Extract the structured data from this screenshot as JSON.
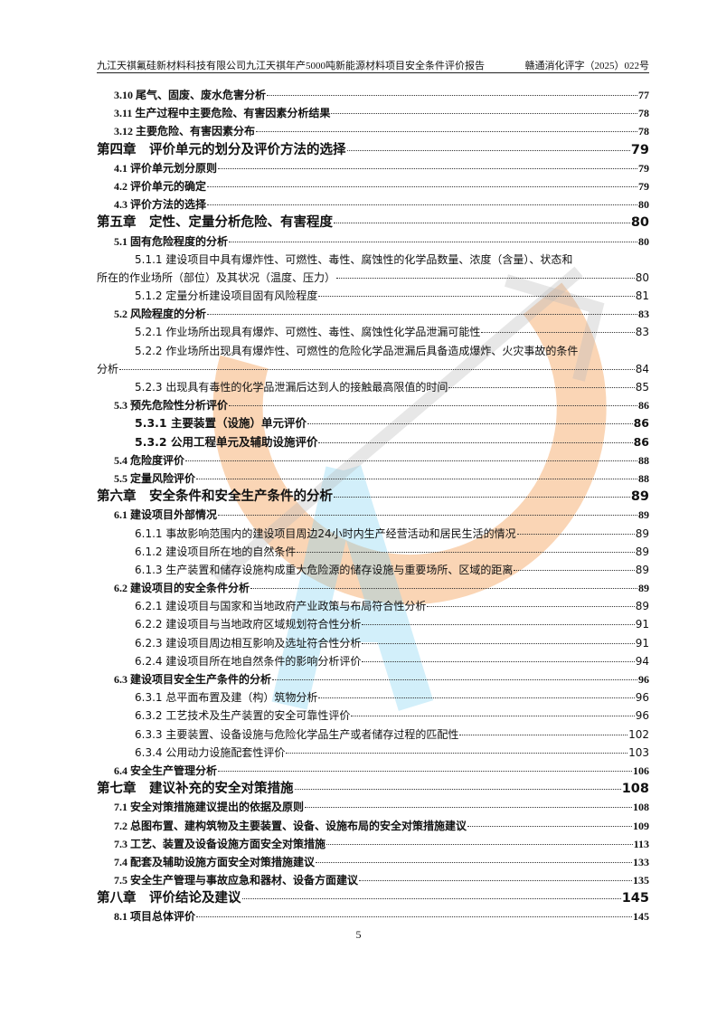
{
  "header": {
    "left": "九江天祺氟硅新材料科技有限公司九江天祺年产5000吨新能源材料项目安全条件评价报告",
    "right": "赣通消化评字（2025）022号"
  },
  "toc": [
    {
      "level": "l2",
      "title": "3.10 尾气、固废、废水危害分析",
      "page": "77"
    },
    {
      "level": "l2",
      "title": "3.11 生产过程中主要危险、有害因素分析结果",
      "page": "78"
    },
    {
      "level": "l2",
      "title": "3.12 主要危险、有害因素分布",
      "page": "78"
    },
    {
      "level": "l1",
      "title": "第四章　评价单元的划分及评价方法的选择",
      "page": "79"
    },
    {
      "level": "l2",
      "title": "4.1 评价单元划分原则",
      "page": "79"
    },
    {
      "level": "l2",
      "title": "4.2 评价单元的确定",
      "page": "79"
    },
    {
      "level": "l2",
      "title": "4.3 评价方法的选择",
      "page": "80"
    },
    {
      "level": "l1",
      "title": "第五章　定性、定量分析危险、有害程度",
      "page": "80"
    },
    {
      "level": "l2",
      "title": "5.1 固有危险程度的分析",
      "page": "80"
    },
    {
      "level": "l3",
      "title": "5.1.1 建设项目中具有爆炸性、可燃性、毒性、腐蚀性的化学品数量、浓度（含量）、状态和",
      "cont": "所在的作业场所（部位）及其状况（温度、压力）",
      "page": "80"
    },
    {
      "level": "l3",
      "title": "5.1.2 定量分析建设项目固有风险程度",
      "page": "81"
    },
    {
      "level": "l2",
      "title": "5.2  风险程度的分析",
      "page": "83"
    },
    {
      "level": "l3",
      "title": "5.2.1  作业场所出现具有爆炸、可燃性、毒性、腐蚀性化学品泄漏可能性",
      "page": "83"
    },
    {
      "level": "l3",
      "title": "5.2.2 作业场所出现具有爆炸性、可燃性的危险化学品泄漏后具备造成爆炸、火灾事故的条件",
      "cont": "分析",
      "page": "84"
    },
    {
      "level": "l3",
      "title": "5.2.3 出现具有毒性的化学品泄漏后达到人的接触最高限值的时间",
      "page": "85"
    },
    {
      "level": "l2",
      "title": "5.3 预先危险性分析评价",
      "page": "86"
    },
    {
      "level": "l3b",
      "title": "5.3.1 主要装置（设施）单元评价",
      "page": "86"
    },
    {
      "level": "l3b",
      "title": "5.3.2 公用工程单元及辅助设施评价",
      "page": "86"
    },
    {
      "level": "l2",
      "title": "5.4 危险度评价",
      "page": "88"
    },
    {
      "level": "l2",
      "title": "5.5 定量风险评价",
      "page": "88"
    },
    {
      "level": "l1",
      "title": "第六章　安全条件和安全生产条件的分析",
      "page": "89"
    },
    {
      "level": "l2",
      "title": "6.1 建设项目外部情况",
      "page": "89"
    },
    {
      "level": "l3",
      "title": "6.1.1 事故影响范围内的建设项目周边24小时内生产经营活动和居民生活的情况",
      "page": "89"
    },
    {
      "level": "l3",
      "title": "6.1.2 建设项目所在地的自然条件",
      "page": "89"
    },
    {
      "level": "l3",
      "title": "6.1.3 生产装置和储存设施构成重大危险源的储存设施与重要场所、区域的距离",
      "page": "89"
    },
    {
      "level": "l2",
      "title": "6.2 建设项目的安全条件分析",
      "page": "89"
    },
    {
      "level": "l3",
      "title": "6.2.1 建设项目与国家和当地政府产业政策与布局符合性分析",
      "page": "89"
    },
    {
      "level": "l3",
      "title": "6.2.2 建设项目与当地政府区域规划符合性分析",
      "page": "91"
    },
    {
      "level": "l3",
      "title": "6.2.3 建设项目周边相互影响及选址符合性分析",
      "page": "91"
    },
    {
      "level": "l3",
      "title": "6.2.4 建设项目所在地自然条件的影响分析评价",
      "page": "94"
    },
    {
      "level": "l2",
      "title": "6.3 建设项目安全生产条件的分析",
      "page": "96"
    },
    {
      "level": "l3",
      "title": "6.3.1 总平面布置及建（构）筑物分析",
      "page": "96"
    },
    {
      "level": "l3",
      "title": "6.3.2 工艺技术及生产装置的安全可靠性评价",
      "page": "96"
    },
    {
      "level": "l3",
      "title": "6.3.3 主要装置、设备设施与危险化学品生产或者储存过程的匹配性",
      "page": "102"
    },
    {
      "level": "l3",
      "title": "6.3.4 公用动力设施配套性评价",
      "page": "103"
    },
    {
      "level": "l2",
      "title": "6.4 安全生产管理分析",
      "page": "106"
    },
    {
      "level": "l1",
      "title": "第七章　建议补充的安全对策措施",
      "page": "108"
    },
    {
      "level": "l2",
      "title": "7.1 安全对策措施建议提出的依据及原则",
      "page": "108"
    },
    {
      "level": "l2",
      "title": "7.2 总图布置、建构筑物及主要装置、设备、设施布局的安全对策措施建议",
      "page": "109"
    },
    {
      "level": "l2",
      "title": "7.3 工艺、装置及设备设施方面安全对策措施",
      "page": "113"
    },
    {
      "level": "l2",
      "title": "7.4 配套及辅助设施方面安全对策措施建议",
      "page": "133"
    },
    {
      "level": "l2",
      "title": "7.5 安全生产管理与事故应急和器材、设备方面建议",
      "page": "135"
    },
    {
      "level": "l1",
      "title": "第八章　评价结论及建议",
      "page": "145"
    },
    {
      "level": "l2",
      "title": "8.1 项目总体评价",
      "page": "145"
    }
  ],
  "footer": {
    "page_number": "5"
  },
  "watermark": {
    "colors": {
      "orange": "#f4a25a",
      "blue": "#7fd0f0",
      "gray": "#bbbbbb"
    }
  }
}
